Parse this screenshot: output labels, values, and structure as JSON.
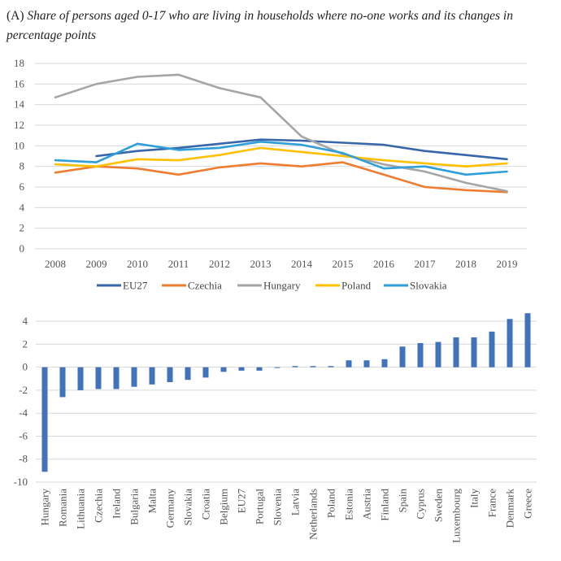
{
  "title": {
    "tag": "(A)",
    "text": "Share of persons aged 0-17 who are living in households where no-one works and its changes in percentage points"
  },
  "chart_data": [
    {
      "type": "line",
      "x": [
        "2008",
        "2009",
        "2010",
        "2011",
        "2012",
        "2013",
        "2014",
        "2015",
        "2016",
        "2017",
        "2018",
        "2019"
      ],
      "ylim": [
        0,
        18
      ],
      "yticks": [
        0,
        2,
        4,
        6,
        8,
        10,
        12,
        14,
        16,
        18
      ],
      "grid": true,
      "legend": "bottom",
      "series": [
        {
          "name": "EU27",
          "color": "#3866aa",
          "values": [
            null,
            9.0,
            9.5,
            9.8,
            10.2,
            10.6,
            10.5,
            10.3,
            10.1,
            9.5,
            9.1,
            8.7
          ]
        },
        {
          "name": "Czechia",
          "color": "#ed7d31",
          "values": [
            7.4,
            8.0,
            7.8,
            7.2,
            7.9,
            8.3,
            8.0,
            8.4,
            7.2,
            6.0,
            5.7,
            5.5
          ]
        },
        {
          "name": "Hungary",
          "color": "#a5a5a5",
          "values": [
            14.7,
            16.0,
            16.7,
            16.9,
            15.6,
            14.7,
            10.9,
            9.2,
            8.2,
            7.5,
            6.4,
            5.6
          ]
        },
        {
          "name": "Poland",
          "color": "#ffc000",
          "values": [
            8.2,
            8.0,
            8.7,
            8.6,
            9.1,
            9.8,
            9.4,
            9.0,
            8.6,
            8.3,
            8.0,
            8.3
          ]
        },
        {
          "name": "Slovakia",
          "color": "#2e9fd8",
          "values": [
            8.6,
            8.4,
            10.2,
            9.6,
            9.8,
            10.4,
            10.1,
            9.3,
            7.8,
            8.0,
            7.2,
            7.5
          ]
        }
      ]
    },
    {
      "type": "bar",
      "color": "#4072be",
      "ylim": [
        -10,
        5
      ],
      "yticks": [
        -10,
        -8,
        -6,
        -4,
        -2,
        0,
        2,
        4
      ],
      "grid": true,
      "categories": [
        "Hungary",
        "Romania",
        "Lithuania",
        "Czechia",
        "Ireland",
        "Bulgaria",
        "Malta",
        "Germany",
        "Slovakia",
        "Croatia",
        "Belgium",
        "EU27",
        "Portugal",
        "Slovenia",
        "Latvia",
        "Netherlands",
        "Poland",
        "Estonia",
        "Austria",
        "Finland",
        "Spain",
        "Cyprus",
        "Sweden",
        "Luxembourg",
        "Italy",
        "France",
        "Denmark",
        "Greece"
      ],
      "values": [
        -9.1,
        -2.6,
        -2.0,
        -1.9,
        -1.9,
        -1.7,
        -1.5,
        -1.3,
        -1.1,
        -0.9,
        -0.4,
        -0.3,
        -0.3,
        0.0,
        0.1,
        0.1,
        0.1,
        0.6,
        0.6,
        0.7,
        1.8,
        2.1,
        2.2,
        2.6,
        2.6,
        3.1,
        4.2,
        4.7
      ]
    }
  ]
}
